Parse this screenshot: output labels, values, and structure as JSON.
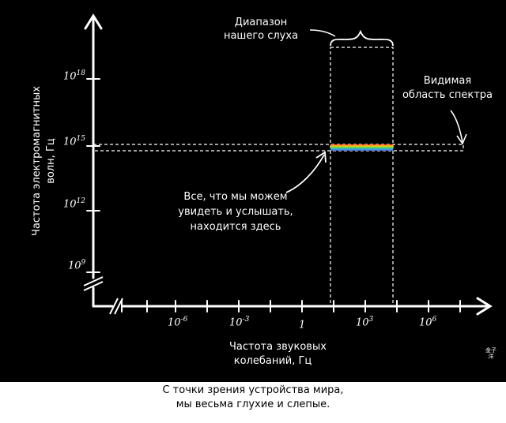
{
  "y_axis": {
    "label_line1": "Частота электромагнитных",
    "label_line2": "волн, Гц",
    "ticks": [
      {
        "base": "10",
        "exp": "18"
      },
      {
        "base": "10",
        "exp": "15"
      },
      {
        "base": "10",
        "exp": "12"
      },
      {
        "base": "10",
        "exp": "9"
      }
    ]
  },
  "x_axis": {
    "label_line1": "Частота звуковых",
    "label_line2": "колебаний, Гц",
    "ticks": [
      {
        "base": "10",
        "exp": "-6"
      },
      {
        "base": "10",
        "exp": "-3"
      },
      {
        "base": "1",
        "exp": ""
      },
      {
        "base": "10",
        "exp": "3"
      },
      {
        "base": "10",
        "exp": "6"
      }
    ]
  },
  "annotations": {
    "hearing_line1": "Диапазон",
    "hearing_line2": "нашего слуха",
    "visible_line1": "Видимая",
    "visible_line2": "область спектра",
    "here_line1": "Все, что мы можем",
    "here_line2": "увидеть и услышать,",
    "here_line3": "находится здесь"
  },
  "signature": "金子洋",
  "caption": {
    "line1": "С точки зрения устройства мира,",
    "line2": "мы весьма глухие и слепые."
  },
  "colors": {
    "background": "#000000",
    "ink": "#ffffff",
    "spectrum": [
      "#ff3b30",
      "#ffcc00",
      "#4cd964",
      "#34aadc",
      "#5856d6"
    ]
  }
}
